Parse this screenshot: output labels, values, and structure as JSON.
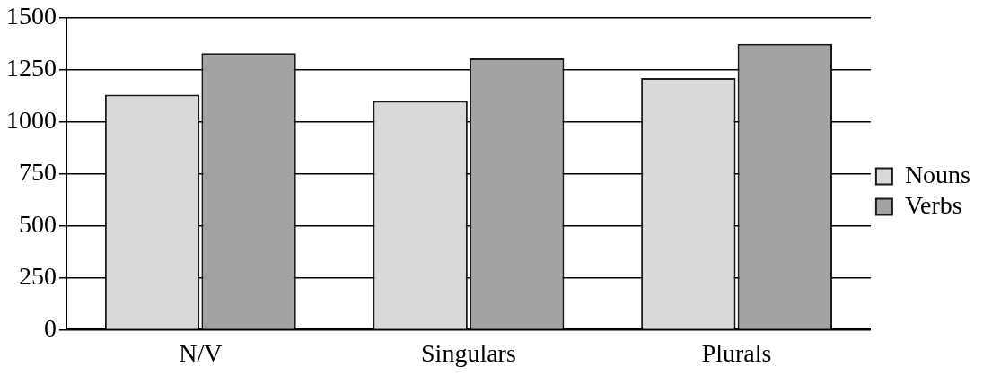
{
  "chart_data": {
    "type": "bar",
    "categories": [
      "N/V",
      "Singulars",
      "Plurals"
    ],
    "series": [
      {
        "name": "Nouns",
        "color": "#d9d9d9",
        "values": [
          1130,
          1100,
          1210
        ]
      },
      {
        "name": "Verbs",
        "color": "#a3a3a3",
        "values": [
          1330,
          1305,
          1375
        ]
      }
    ],
    "ylim": [
      0,
      1500
    ],
    "yticks": [
      0,
      250,
      500,
      750,
      1000,
      1250,
      1500
    ],
    "grid": true,
    "legend": "right"
  }
}
